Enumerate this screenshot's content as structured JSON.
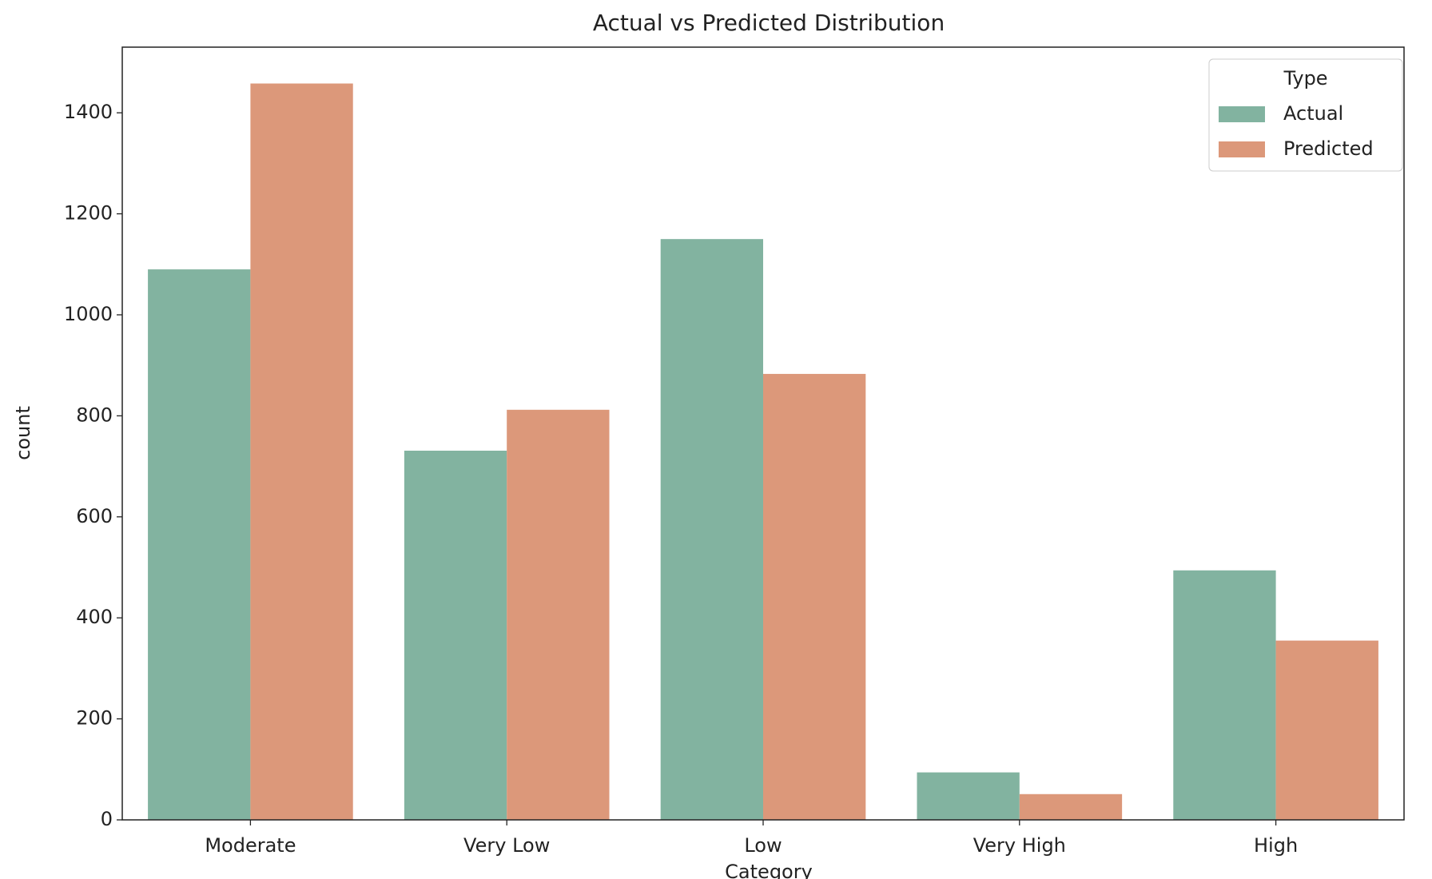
{
  "chart_data": {
    "type": "bar",
    "title": "Actual vs Predicted Distribution",
    "x_label": "Category",
    "y_label": "count",
    "categories": [
      "Moderate",
      "Very Low",
      "Low",
      "Very High",
      "High"
    ],
    "series": [
      {
        "name": "Actual",
        "color": "#82b3a0",
        "values": [
          1090,
          731,
          1150,
          94,
          494
        ]
      },
      {
        "name": "Predicted",
        "color": "#dc987a",
        "values": [
          1458,
          812,
          883,
          51,
          355
        ]
      }
    ],
    "legend_title": "Type",
    "legend_position": "upper right",
    "ylim": [
      0,
      1530
    ],
    "yticks": [
      0,
      200,
      400,
      600,
      800,
      1000,
      1200,
      1400
    ]
  }
}
